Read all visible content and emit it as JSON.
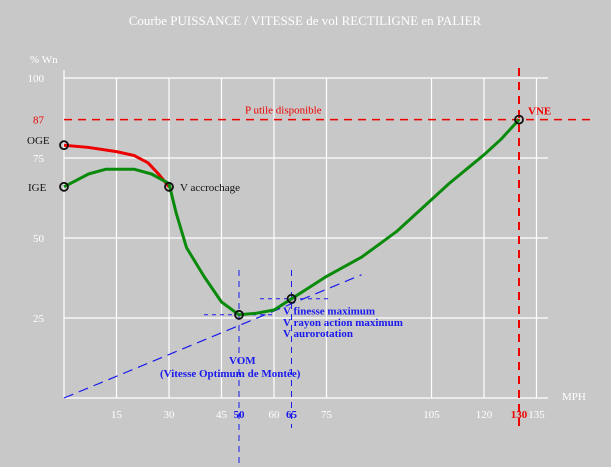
{
  "chart_data": {
    "type": "line",
    "title": "Courbe PUISSANCE / VITESSE de vol RECTILIGNE en PALIER",
    "ylabel": "% Wn",
    "xlabel": "MPH",
    "xlim": [
      0,
      138
    ],
    "ylim": [
      0,
      100
    ],
    "x_ticks": [
      15,
      30,
      45,
      60,
      75,
      105,
      120,
      135
    ],
    "x_ticks_highlight": [
      50,
      65,
      130
    ],
    "y_ticks": [
      25,
      50,
      75,
      87,
      100
    ],
    "y_tick_labels": {
      "25": "25",
      "50": "50",
      "75": "75",
      "87": "87",
      "100": "100"
    },
    "series": [
      {
        "name": "OGE",
        "color": "#ee0000",
        "x": [
          0,
          7,
          15,
          20,
          24,
          27,
          30
        ],
        "y": [
          79,
          78.3,
          77,
          75.8,
          73.5,
          70,
          66
        ]
      },
      {
        "name": "IGE",
        "color": "#0a8a0a",
        "x": [
          0,
          7,
          12,
          20,
          25,
          30,
          32,
          35,
          40,
          45,
          50,
          55,
          60,
          65,
          70,
          75,
          80,
          85,
          90,
          95,
          100,
          105,
          110,
          115,
          120,
          125,
          130
        ],
        "y": [
          66,
          70,
          71.5,
          71.5,
          70,
          67,
          58,
          47,
          38,
          30,
          26,
          26.5,
          27.5,
          31,
          34.5,
          38,
          41,
          44,
          48,
          52,
          57,
          62,
          67,
          71.5,
          76,
          81,
          87
        ]
      }
    ],
    "annotations": {
      "p_utile": "P utile disponible",
      "vne": "VNE",
      "oge": "OGE",
      "ige": "IGE",
      "v_accrochage": "V accrochage",
      "v_finesse": "V finesse maximum",
      "v_rayon": "V rayon action maximum",
      "v_autorotation": "V aurorotation",
      "vom": "VOM",
      "vom_full": "(Vitesse Optimum de Montée)"
    },
    "markers": [
      {
        "x": 0,
        "y": 79
      },
      {
        "x": 0,
        "y": 66
      },
      {
        "x": 30,
        "y": 66
      },
      {
        "x": 50,
        "y": 26
      },
      {
        "x": 65,
        "y": 31
      },
      {
        "x": 130,
        "y": 87
      }
    ],
    "tangent_line": {
      "x": [
        0,
        85
      ],
      "y": [
        0,
        38.5
      ]
    },
    "colors": {
      "background": "#c8c8c8",
      "grid": "#ffffff",
      "red": "#ee0000",
      "green": "#0a8a0a",
      "blue": "#1a1aee"
    }
  }
}
